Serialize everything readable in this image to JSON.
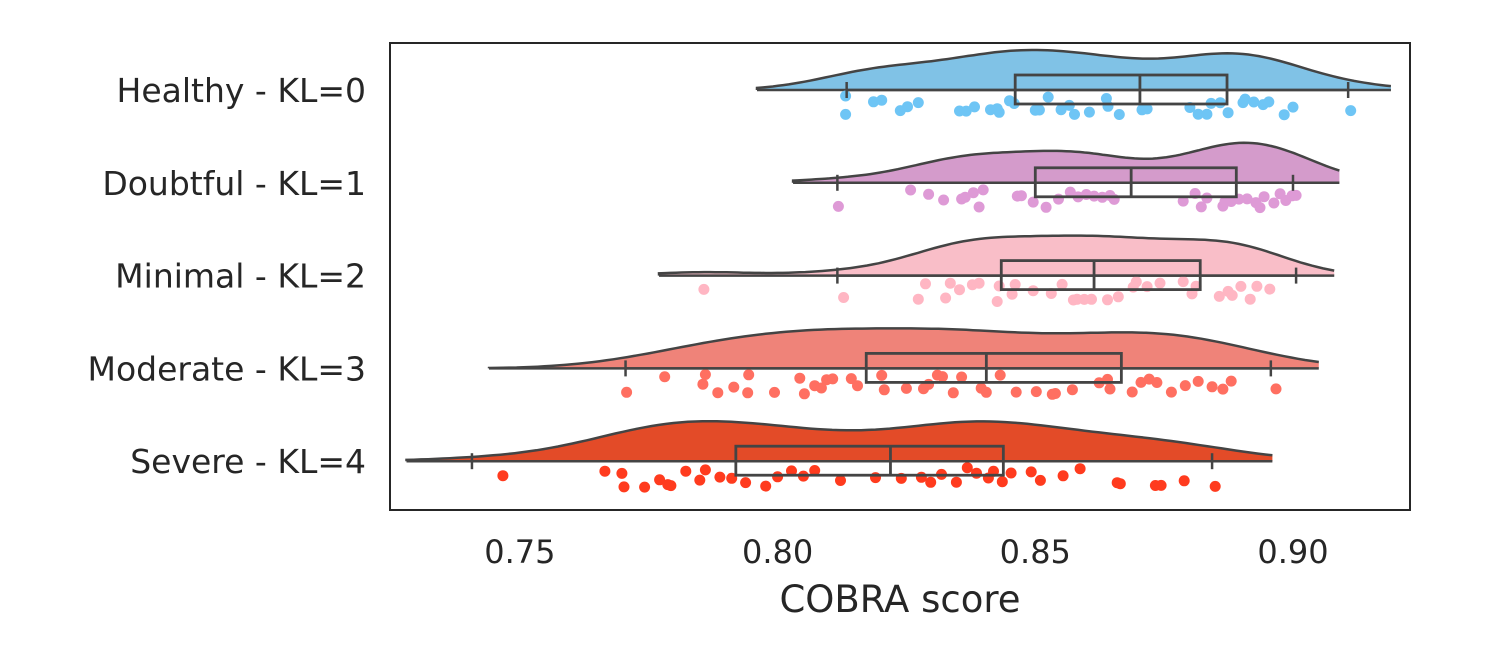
{
  "chart_data": {
    "type": "raincloud",
    "title": "",
    "xlabel": "COBRA score",
    "ylabel": "",
    "xlim": [
      0.7248,
      0.9227
    ],
    "xticks": [
      "0.75",
      "0.80",
      "0.85",
      "0.90"
    ],
    "xtick_values": [
      0.75,
      0.8,
      0.85,
      0.9
    ],
    "grid": false,
    "groups": [
      {
        "label": "Healthy - KL=0",
        "violin_color": "#80c2e6",
        "point_color": "#6ec5f5",
        "violin_range": [
          0.796,
          0.919
        ],
        "box": {
          "whisker_low": 0.8134,
          "q1": 0.8461,
          "median": 0.8703,
          "q3": 0.8872,
          "whisker_high": 0.9107
        },
        "points": [
          0.8132,
          0.8132,
          0.8186,
          0.8202,
          0.8238,
          0.8252,
          0.8273,
          0.8353,
          0.8366,
          0.8382,
          0.8413,
          0.8426,
          0.843,
          0.845,
          0.8459,
          0.85,
          0.8508,
          0.8525,
          0.855,
          0.8566,
          0.8576,
          0.8605,
          0.8638,
          0.8641,
          0.8663,
          0.8707,
          0.8717,
          0.88,
          0.8816,
          0.8833,
          0.8841,
          0.8859,
          0.8874,
          0.8903,
          0.8907,
          0.8924,
          0.8942,
          0.8953,
          0.8983,
          0.9,
          0.9112
        ]
      },
      {
        "label": "Doubtful - KL=1",
        "violin_color": "#d49bcb",
        "point_color": "#de9ad6",
        "violin_range": [
          0.803,
          0.909
        ],
        "box": {
          "whisker_low": 0.8116,
          "q1": 0.85,
          "median": 0.8686,
          "q3": 0.889,
          "whisker_high": 0.9
        },
        "points": [
          0.8118,
          0.8258,
          0.8293,
          0.8322,
          0.8357,
          0.8364,
          0.838,
          0.8391,
          0.8399,
          0.8465,
          0.8473,
          0.8496,
          0.8521,
          0.8545,
          0.8568,
          0.8583,
          0.8599,
          0.8614,
          0.863,
          0.8645,
          0.8653,
          0.8787,
          0.881,
          0.8822,
          0.8833,
          0.8864,
          0.8868,
          0.888,
          0.8895,
          0.8911,
          0.8928,
          0.8936,
          0.8944,
          0.8963,
          0.8975,
          0.8986,
          0.8998,
          0.9006
        ]
      },
      {
        "label": "Minimal - KL=2",
        "violin_color": "#f9bec8",
        "point_color": "#ffb6c3",
        "violin_range": [
          0.777,
          0.908
        ],
        "box": {
          "whisker_low": 0.8116,
          "q1": 0.8434,
          "median": 0.8614,
          "q3": 0.882,
          "whisker_high": 0.9006
        },
        "points": [
          0.7857,
          0.8128,
          0.8273,
          0.8287,
          0.8326,
          0.8335,
          0.8353,
          0.8378,
          0.8391,
          0.8426,
          0.843,
          0.8455,
          0.8461,
          0.8496,
          0.8531,
          0.8552,
          0.8574,
          0.8581,
          0.8595,
          0.8609,
          0.864,
          0.8661,
          0.869,
          0.8696,
          0.8717,
          0.8742,
          0.8787,
          0.8804,
          0.8812,
          0.8857,
          0.8874,
          0.8882,
          0.8899,
          0.8917,
          0.893,
          0.8955
        ]
      },
      {
        "label": "Moderate - KL=3",
        "violin_color": "#ef8379",
        "point_color": "#ff6f61",
        "violin_range": [
          0.744,
          0.905
        ],
        "box": {
          "whisker_low": 0.7705,
          "q1": 0.8172,
          "median": 0.8405,
          "q3": 0.8667,
          "whisker_high": 0.8957
        },
        "points": [
          0.7707,
          0.7781,
          0.7855,
          0.786,
          0.7884,
          0.7915,
          0.7942,
          0.7944,
          0.7994,
          0.8043,
          0.8052,
          0.8072,
          0.8085,
          0.8095,
          0.8107,
          0.8143,
          0.8155,
          0.8202,
          0.8207,
          0.825,
          0.8283,
          0.8293,
          0.831,
          0.832,
          0.8341,
          0.8357,
          0.8395,
          0.8405,
          0.8432,
          0.8463,
          0.8502,
          0.8533,
          0.8539,
          0.8572,
          0.8624,
          0.864,
          0.8645,
          0.8688,
          0.8705,
          0.8721,
          0.8736,
          0.8764,
          0.8791,
          0.8816,
          0.8843,
          0.8864,
          0.888,
          0.8967
        ]
      },
      {
        "label": "Severe - KL=4",
        "violin_color": "#e34b28",
        "point_color": "#ff3b1e",
        "violin_range": [
          0.728,
          0.896
        ],
        "box": {
          "whisker_low": 0.7407,
          "q1": 0.7919,
          "median": 0.8219,
          "q3": 0.8438,
          "whisker_high": 0.8843
        },
        "points": [
          0.7467,
          0.7665,
          0.7698,
          0.7702,
          0.7742,
          0.7771,
          0.7787,
          0.7793,
          0.7822,
          0.7849,
          0.786,
          0.7888,
          0.7911,
          0.7938,
          0.7977,
          0.8,
          0.8027,
          0.805,
          0.8072,
          0.8122,
          0.819,
          0.824,
          0.8279,
          0.8297,
          0.8318,
          0.8347,
          0.8368,
          0.8386,
          0.8409,
          0.8419,
          0.8436,
          0.8453,
          0.8492,
          0.851,
          0.8554,
          0.8587,
          0.8659,
          0.8665,
          0.8733,
          0.8744,
          0.8789,
          0.8849
        ]
      }
    ]
  }
}
